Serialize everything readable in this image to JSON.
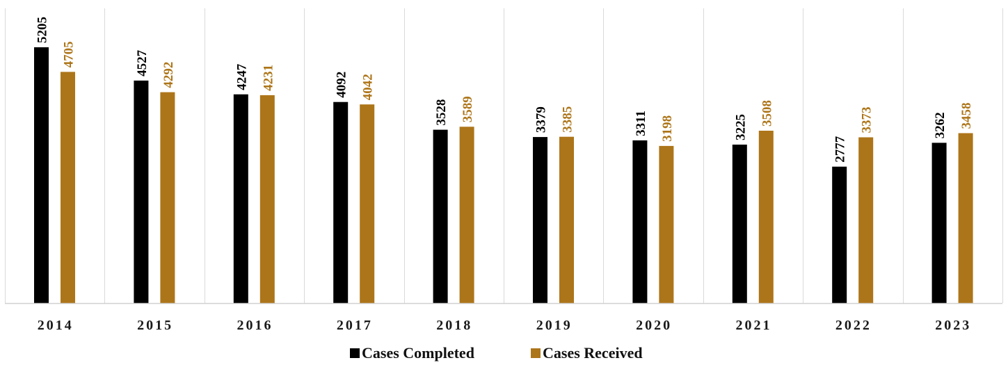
{
  "chart_data": {
    "type": "bar",
    "categories": [
      "2014",
      "2015",
      "2016",
      "2017",
      "2018",
      "2019",
      "2020",
      "2021",
      "2022",
      "2023"
    ],
    "series": [
      {
        "name": "Cases Completed",
        "values": [
          5205,
          4527,
          4247,
          4092,
          3528,
          3379,
          3311,
          3225,
          2777,
          3262
        ],
        "color": "#000000"
      },
      {
        "name": "Cases Received",
        "values": [
          4705,
          4292,
          4231,
          4042,
          3589,
          3385,
          3198,
          3508,
          3373,
          3458
        ],
        "color": "#ad7519"
      }
    ],
    "title": "",
    "xlabel": "",
    "ylabel": "",
    "ylim": [
      0,
      5205
    ],
    "grid": "vertical separators",
    "legend": "bottom-center",
    "data_labels": "vertical, above bars"
  }
}
